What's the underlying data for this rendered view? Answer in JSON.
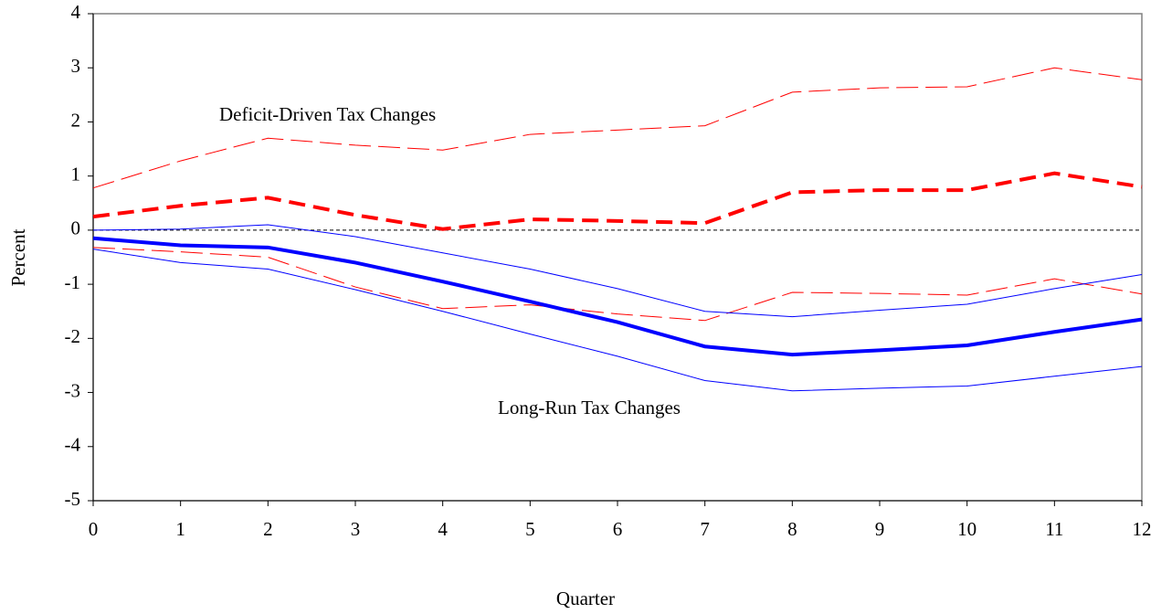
{
  "chart_data": {
    "type": "line",
    "x_label": "Quarter",
    "y_label": "Percent",
    "annotations": [
      "Deficit-Driven Tax Changes",
      "Long-Run Tax Changes"
    ],
    "x": [
      0,
      1,
      2,
      3,
      4,
      5,
      6,
      7,
      8,
      9,
      10,
      11,
      12
    ],
    "xlim": [
      0,
      12
    ],
    "xticks": [
      0,
      1,
      2,
      3,
      4,
      5,
      6,
      7,
      8,
      9,
      10,
      11,
      12
    ],
    "ylim": [
      -5,
      4
    ],
    "yticks": [
      -5,
      -4,
      -3,
      -2,
      -1,
      0,
      1,
      2,
      3,
      4
    ],
    "zero_line": true,
    "series": [
      {
        "color": "#ff0000",
        "width": 4,
        "dash": "18 9",
        "values": [
          0.25,
          0.45,
          0.6,
          0.28,
          0.02,
          0.2,
          0.17,
          0.13,
          0.7,
          0.74,
          0.74,
          1.05,
          0.8
        ]
      },
      {
        "color": "#ff0000",
        "width": 1,
        "dash": "24 8",
        "values": [
          0.78,
          1.28,
          1.7,
          1.57,
          1.48,
          1.77,
          1.85,
          1.93,
          2.55,
          2.63,
          2.65,
          3.0,
          2.78
        ]
      },
      {
        "color": "#ff0000",
        "width": 1,
        "dash": "24 8",
        "values": [
          -0.32,
          -0.4,
          -0.5,
          -1.05,
          -1.45,
          -1.38,
          -1.55,
          -1.67,
          -1.15,
          -1.17,
          -1.2,
          -0.9,
          -1.18
        ]
      },
      {
        "color": "#0000ff",
        "width": 4,
        "dash": "none",
        "values": [
          -0.15,
          -0.28,
          -0.32,
          -0.6,
          -0.95,
          -1.32,
          -1.7,
          -2.15,
          -2.3,
          -2.22,
          -2.13,
          -1.88,
          -1.65
        ]
      },
      {
        "color": "#0000ff",
        "width": 1,
        "dash": "none",
        "values": [
          0.0,
          0.02,
          0.1,
          -0.12,
          -0.42,
          -0.72,
          -1.08,
          -1.5,
          -1.6,
          -1.48,
          -1.37,
          -1.08,
          -0.82
        ]
      },
      {
        "color": "#0000ff",
        "width": 1,
        "dash": "none",
        "values": [
          -0.35,
          -0.6,
          -0.72,
          -1.1,
          -1.5,
          -1.92,
          -2.33,
          -2.78,
          -2.97,
          -2.92,
          -2.88,
          -2.7,
          -2.52
        ]
      }
    ]
  }
}
